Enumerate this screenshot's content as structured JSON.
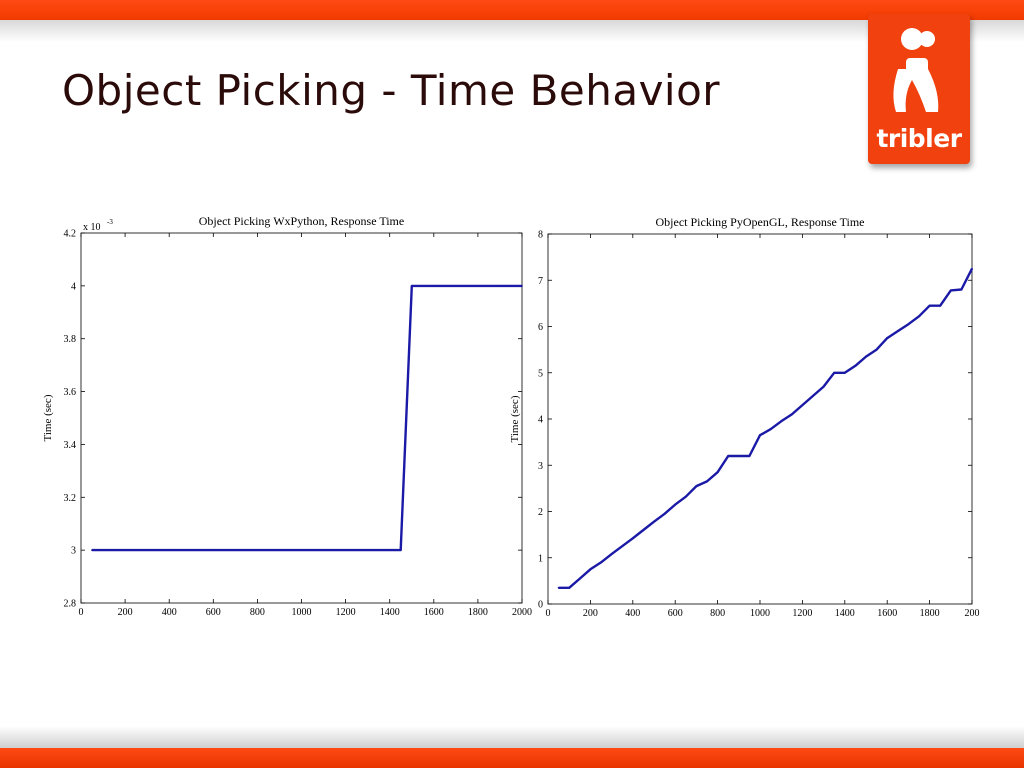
{
  "slide": {
    "title": "Object Picking - Time Behavior"
  },
  "logo": {
    "text": "tribler"
  },
  "colors": {
    "accent": "#f0410f",
    "series": "#1a1aa6"
  },
  "chart_data": [
    {
      "type": "line",
      "title": "Object Picking WxPython, Response Time",
      "xlabel": "",
      "ylabel": "Time (sec)",
      "y_exponent_label": "x 10",
      "y_exponent_power": "-3",
      "xlim": [
        0,
        2000
      ],
      "ylim": [
        2.8,
        4.2
      ],
      "xticks": [
        "0",
        "200",
        "400",
        "600",
        "800",
        "1000",
        "1200",
        "1400",
        "1600",
        "1800",
        "2000"
      ],
      "yticks": [
        "2.8",
        "3",
        "3.2",
        "3.4",
        "3.6",
        "3.8",
        "4",
        "4.2"
      ],
      "grid": false,
      "series": [
        {
          "x": [
            50,
            100,
            200,
            400,
            600,
            800,
            1000,
            1200,
            1400,
            1450,
            1500,
            1600,
            1800,
            1900,
            1950,
            2000
          ],
          "y": [
            3.0,
            3.0,
            3.0,
            3.0,
            3.0,
            3.0,
            3.0,
            3.0,
            3.0,
            3.0,
            4.0,
            4.0,
            4.0,
            4.0,
            4.0,
            4.0
          ]
        }
      ]
    },
    {
      "type": "line",
      "title": "Object Picking PyOpenGL, Response Time",
      "xlabel": "",
      "ylabel": "Time (sec)",
      "xlim": [
        0,
        2000
      ],
      "ylim": [
        0,
        8
      ],
      "xticks": [
        "0",
        "200",
        "400",
        "600",
        "800",
        "1000",
        "1200",
        "1400",
        "1600",
        "1800",
        "200"
      ],
      "yticks": [
        "0",
        "1",
        "2",
        "3",
        "4",
        "5",
        "6",
        "7",
        "8"
      ],
      "grid": false,
      "series": [
        {
          "x": [
            50,
            100,
            150,
            200,
            250,
            300,
            350,
            400,
            450,
            500,
            550,
            600,
            650,
            700,
            750,
            800,
            850,
            900,
            950,
            1000,
            1050,
            1100,
            1150,
            1200,
            1250,
            1300,
            1350,
            1400,
            1450,
            1500,
            1550,
            1600,
            1650,
            1700,
            1750,
            1800,
            1850,
            1900,
            1950,
            2000
          ],
          "y": [
            0.35,
            0.35,
            0.55,
            0.75,
            0.9,
            1.08,
            1.25,
            1.42,
            1.6,
            1.78,
            1.95,
            2.15,
            2.32,
            2.55,
            2.65,
            2.85,
            3.2,
            3.2,
            3.2,
            3.65,
            3.78,
            3.95,
            4.1,
            4.3,
            4.5,
            4.7,
            5.0,
            5.0,
            5.15,
            5.35,
            5.5,
            5.75,
            5.9,
            6.05,
            6.22,
            6.45,
            6.45,
            6.78,
            6.8,
            7.25
          ]
        }
      ]
    }
  ]
}
